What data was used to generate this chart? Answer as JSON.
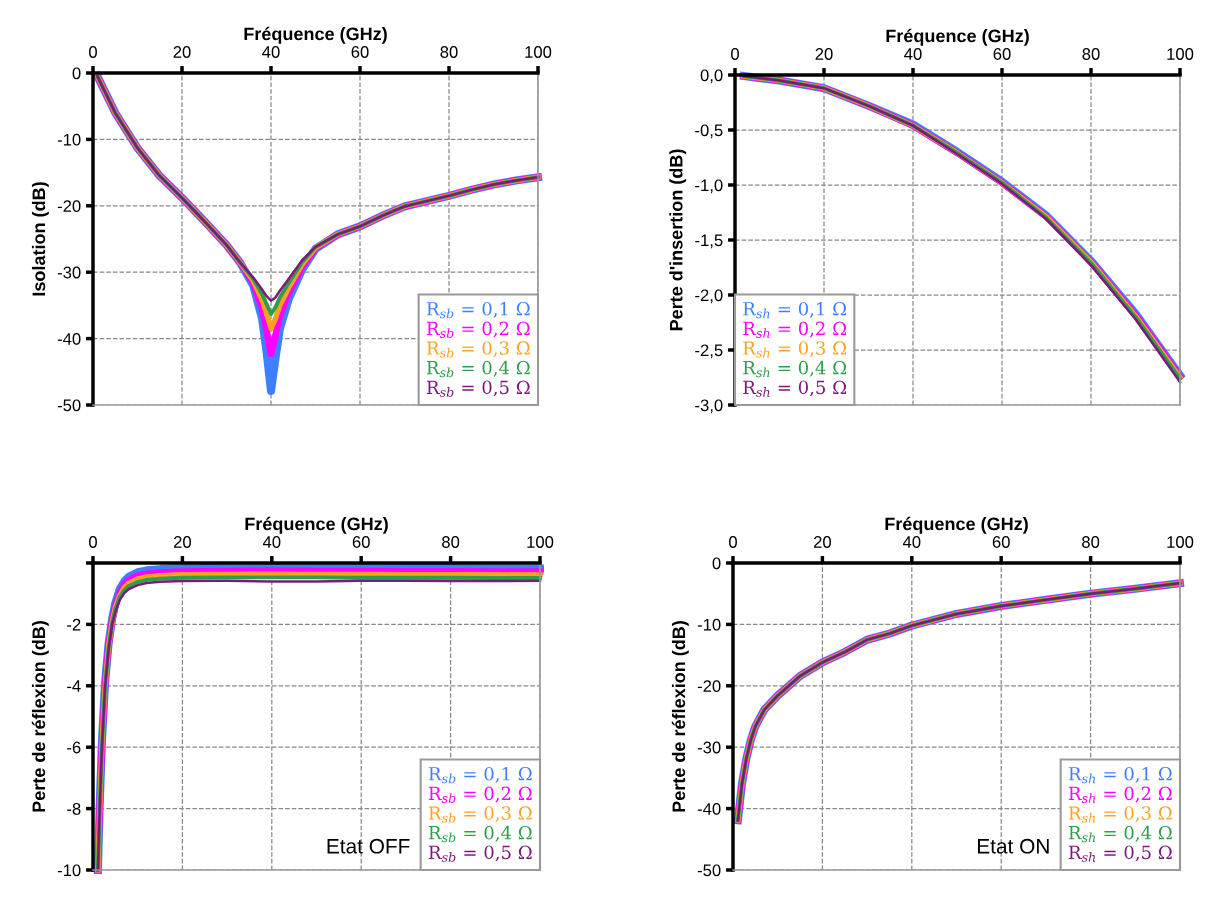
{
  "chart_data": [
    {
      "type": "line",
      "xlabel": "Fréquence (GHz)",
      "ylabel": "Isolation (dB)",
      "xlim": [
        0,
        100
      ],
      "xticks": [
        0,
        20,
        40,
        60,
        80,
        100
      ],
      "ylim": [
        -50,
        0
      ],
      "yticks": [
        0,
        -10,
        -20,
        -30,
        -40,
        -50
      ],
      "grid": true,
      "legend": "bottom right",
      "x": [
        1,
        5,
        10,
        15,
        20,
        25,
        30,
        33,
        36,
        38,
        39,
        40,
        41,
        42,
        44,
        47,
        50,
        55,
        60,
        65,
        70,
        75,
        80,
        85,
        90,
        95,
        100
      ],
      "series": [
        {
          "name": "R$_{sb}$ = 0,1 Ω",
          "color": "#3d7fff",
          "values": [
            -0.5,
            -6,
            -11.3,
            -15.5,
            -18.8,
            -22.3,
            -25.9,
            -28.5,
            -32,
            -37,
            -42,
            -47.9,
            -43,
            -38.5,
            -34,
            -29.6,
            -26.5,
            -24.3,
            -23.1,
            -21.5,
            -20.1,
            -19.3,
            -18.5,
            -17.6,
            -16.8,
            -16.2,
            -15.7
          ]
        },
        {
          "name": "R$_{sb}$ = 0,2 Ω",
          "color": "#ff00ff",
          "values": [
            -0.5,
            -6,
            -11.3,
            -15.5,
            -18.8,
            -22.3,
            -25.9,
            -28.5,
            -31.6,
            -35.5,
            -38.8,
            -42.3,
            -39.5,
            -36.5,
            -33,
            -29.2,
            -26.4,
            -24.3,
            -23.1,
            -21.5,
            -20.1,
            -19.3,
            -18.5,
            -17.6,
            -16.8,
            -16.2,
            -15.7
          ]
        },
        {
          "name": "R$_{sb}$ = 0,3 Ω",
          "color": "#ffa020",
          "values": [
            -0.5,
            -6,
            -11.3,
            -15.5,
            -18.8,
            -22.3,
            -25.9,
            -28.5,
            -31.3,
            -34.2,
            -36.3,
            -38.5,
            -37,
            -35,
            -32.3,
            -28.8,
            -26.3,
            -24.3,
            -23.1,
            -21.5,
            -20.1,
            -19.3,
            -18.5,
            -17.6,
            -16.8,
            -16.2,
            -15.7
          ]
        },
        {
          "name": "R$_{sb}$ = 0,4 Ω",
          "color": "#2e9e4e",
          "values": [
            -0.5,
            -6,
            -11.3,
            -15.5,
            -18.8,
            -22.3,
            -25.9,
            -28.5,
            -31,
            -33.3,
            -34.8,
            -36.3,
            -35.3,
            -33.8,
            -31.6,
            -28.5,
            -26.2,
            -24.3,
            -23.1,
            -21.5,
            -20.1,
            -19.3,
            -18.5,
            -17.6,
            -16.8,
            -16.2,
            -15.7
          ]
        },
        {
          "name": "R$_{sb}$ = 0,5 Ω",
          "color": "#7b1a7b",
          "values": [
            -0.5,
            -6,
            -11.3,
            -15.5,
            -18.8,
            -22.3,
            -25.9,
            -28.5,
            -30.8,
            -32.6,
            -33.6,
            -34.3,
            -33.8,
            -32.8,
            -31,
            -28.2,
            -26.2,
            -24.3,
            -23.1,
            -21.5,
            -20.1,
            -19.3,
            -18.5,
            -17.6,
            -16.8,
            -16.2,
            -15.7
          ]
        }
      ]
    },
    {
      "type": "line",
      "xlabel": "Fréquence (GHz)",
      "ylabel": "Perte d'insertion (dB)",
      "xlim": [
        0,
        100
      ],
      "xticks": [
        0,
        20,
        40,
        60,
        80,
        100
      ],
      "ylim": [
        -3,
        0
      ],
      "yticks": [
        {
          "value": 0,
          "label": "0,0"
        },
        {
          "value": -0.5,
          "label": "-0,5"
        },
        {
          "value": -1,
          "label": "-1,0"
        },
        {
          "value": -1.5,
          "label": "-1,5"
        },
        {
          "value": -2,
          "label": "-2,0"
        },
        {
          "value": -2.5,
          "label": "-2,5"
        },
        {
          "value": -3,
          "label": "-3,0"
        }
      ],
      "grid": true,
      "legend": "bottom left",
      "x": [
        2,
        10,
        20,
        30,
        40,
        50,
        60,
        70,
        80,
        90,
        100
      ],
      "series": [
        {
          "name": "R$_{sh}$ = 0,1 Ω",
          "color": "#3d7fff",
          "values": [
            -0.01,
            -0.05,
            -0.12,
            -0.28,
            -0.45,
            -0.7,
            -0.97,
            -1.28,
            -1.69,
            -2.17,
            -2.73
          ]
        },
        {
          "name": "R$_{sh}$ = 0,2 Ω",
          "color": "#ff00ff",
          "values": [
            -0.01,
            -0.05,
            -0.12,
            -0.28,
            -0.46,
            -0.71,
            -0.98,
            -1.29,
            -1.7,
            -2.18,
            -2.74
          ]
        },
        {
          "name": "R$_{sh}$ = 0,3 Ω",
          "color": "#ffa020",
          "values": [
            -0.01,
            -0.05,
            -0.12,
            -0.28,
            -0.46,
            -0.71,
            -0.98,
            -1.29,
            -1.7,
            -2.19,
            -2.75
          ]
        },
        {
          "name": "R$_{sh}$ = 0,4 Ω",
          "color": "#2e9e4e",
          "values": [
            -0.01,
            -0.05,
            -0.12,
            -0.28,
            -0.46,
            -0.71,
            -0.98,
            -1.3,
            -1.71,
            -2.2,
            -2.76
          ]
        },
        {
          "name": "R$_{sh}$ = 0,5 Ω",
          "color": "#7b1a7b",
          "values": [
            -0.01,
            -0.05,
            -0.12,
            -0.28,
            -0.46,
            -0.72,
            -0.99,
            -1.31,
            -1.73,
            -2.22,
            -2.79
          ]
        }
      ]
    },
    {
      "type": "line",
      "xlabel": "Fréquence (GHz)",
      "ylabel": "Perte de réflexion (dB)",
      "xlim": [
        0,
        100
      ],
      "xticks": [
        0,
        20,
        40,
        60,
        80,
        100
      ],
      "ylim": [
        -10,
        0
      ],
      "yticks": [
        {
          "value": 0,
          "label": null
        },
        -2,
        -4,
        -6,
        -8,
        -10
      ],
      "grid": true,
      "legend": "bottom right",
      "annotations": [
        "Etat OFF"
      ],
      "x": [
        1.1,
        1.5,
        2,
        2.7,
        3.5,
        4.3,
        5,
        6,
        7,
        8,
        10,
        12,
        15,
        20,
        30,
        40,
        50,
        60,
        70,
        80,
        90,
        100
      ],
      "series": [
        {
          "name": "R$_{sb}$ = 0,1 Ω",
          "color": "#3d7fff",
          "values": [
            -10,
            -7.9,
            -5.8,
            -3.9,
            -2.6,
            -1.8,
            -1.3,
            -0.85,
            -0.6,
            -0.45,
            -0.3,
            -0.24,
            -0.2,
            -0.17,
            -0.15,
            -0.14,
            -0.15,
            -0.15,
            -0.16,
            -0.16,
            -0.17,
            -0.18
          ]
        },
        {
          "name": "R$_{sb}$ = 0,2 Ω",
          "color": "#ff00ff",
          "values": [
            -10,
            -7.9,
            -5.9,
            -3.95,
            -2.65,
            -1.85,
            -1.4,
            -0.95,
            -0.7,
            -0.56,
            -0.41,
            -0.35,
            -0.31,
            -0.28,
            -0.26,
            -0.25,
            -0.26,
            -0.26,
            -0.27,
            -0.27,
            -0.28,
            -0.28
          ]
        },
        {
          "name": "R$_{sb}$ = 0,3 Ω",
          "color": "#ffa020",
          "values": [
            -10,
            -8,
            -5.9,
            -4,
            -2.7,
            -1.9,
            -1.45,
            -1.05,
            -0.8,
            -0.66,
            -0.52,
            -0.45,
            -0.41,
            -0.38,
            -0.37,
            -0.36,
            -0.37,
            -0.37,
            -0.38,
            -0.38,
            -0.38,
            -0.39
          ]
        },
        {
          "name": "R$_{sb}$ = 0,4 Ω",
          "color": "#2e9e4e",
          "values": [
            -10,
            -8,
            -6,
            -4,
            -2.75,
            -1.95,
            -1.5,
            -1.1,
            -0.88,
            -0.75,
            -0.62,
            -0.55,
            -0.51,
            -0.48,
            -0.47,
            -0.47,
            -0.47,
            -0.48,
            -0.48,
            -0.48,
            -0.49,
            -0.49
          ]
        },
        {
          "name": "R$_{sb}$ = 0,5 Ω",
          "color": "#7b1a7b",
          "values": [
            -10,
            -8,
            -6,
            -4.05,
            -2.8,
            -2,
            -1.6,
            -1.2,
            -0.98,
            -0.85,
            -0.72,
            -0.65,
            -0.61,
            -0.59,
            -0.58,
            -0.6,
            -0.6,
            -0.58,
            -0.58,
            -0.59,
            -0.59,
            -0.58
          ]
        }
      ]
    },
    {
      "type": "line",
      "xlabel": "Fréquence (GHz)",
      "ylabel": "Perte de réflexion (dB)",
      "xlim": [
        0,
        100
      ],
      "xticks": [
        0,
        20,
        40,
        60,
        80,
        100
      ],
      "ylim": [
        -50,
        0
      ],
      "yticks": [
        0,
        -10,
        -20,
        -30,
        -40,
        -50
      ],
      "grid": true,
      "legend": "bottom right",
      "annotations": [
        "Etat ON"
      ],
      "x": [
        1.1,
        2,
        3,
        4,
        5,
        7,
        10,
        15,
        20,
        25,
        30,
        35,
        40,
        50,
        60,
        70,
        80,
        90,
        100
      ],
      "series": [
        {
          "name": "R$_{sh}$ = 0,1 Ω",
          "color": "#3d7fff",
          "values": [
            -41.9,
            -36,
            -31.8,
            -28.8,
            -26.6,
            -23.9,
            -21.6,
            -18.4,
            -16.2,
            -14.5,
            -12.5,
            -11.5,
            -10.2,
            -8.3,
            -7,
            -6,
            -5,
            -4.2,
            -3.3
          ]
        },
        {
          "name": "R$_{sh}$ = 0,2 Ω",
          "color": "#ff00ff",
          "values": [
            -41.9,
            -36,
            -31.8,
            -28.8,
            -26.6,
            -23.9,
            -21.6,
            -18.4,
            -16.2,
            -14.5,
            -12.5,
            -11.5,
            -10.2,
            -8.3,
            -7,
            -6,
            -5,
            -4.2,
            -3.3
          ]
        },
        {
          "name": "R$_{sh}$ = 0,3 Ω",
          "color": "#ffa020",
          "values": [
            -41.9,
            -36,
            -31.8,
            -28.8,
            -26.6,
            -23.9,
            -21.6,
            -18.4,
            -16.2,
            -14.5,
            -12.5,
            -11.5,
            -10.2,
            -8.3,
            -7,
            -6,
            -5,
            -4.2,
            -3.3
          ]
        },
        {
          "name": "R$_{sh}$ = 0,4 Ω",
          "color": "#2e9e4e",
          "values": [
            -41.9,
            -36,
            -31.8,
            -28.8,
            -26.6,
            -23.9,
            -21.6,
            -18.4,
            -16.2,
            -14.5,
            -12.5,
            -11.5,
            -10.2,
            -8.3,
            -7,
            -6,
            -5,
            -4.2,
            -3.3
          ]
        },
        {
          "name": "R$_{sh}$ = 0,5 Ω",
          "color": "#7b1a7b",
          "values": [
            -41.9,
            -36,
            -31.8,
            -28.8,
            -26.6,
            -23.9,
            -21.6,
            -18.4,
            -16.2,
            -14.5,
            -12.5,
            -11.5,
            -10.2,
            -8.3,
            -7,
            -6,
            -5,
            -4.2,
            -3.3
          ]
        }
      ]
    }
  ]
}
